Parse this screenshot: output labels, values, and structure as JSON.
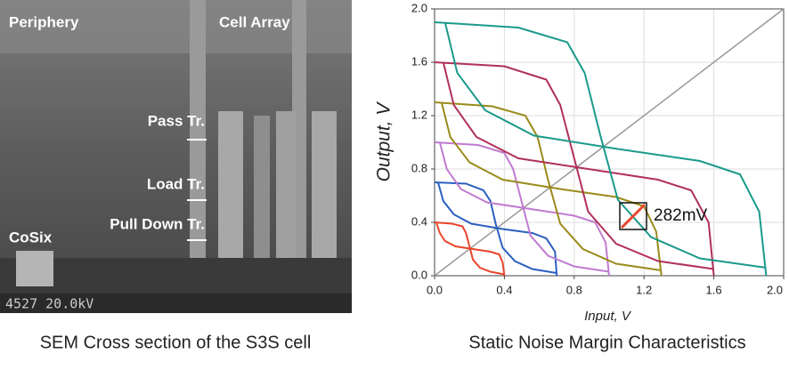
{
  "sem_panel": {
    "labels": [
      "Periphery",
      "Cell Array",
      "Pass Tr.",
      "Load Tr.",
      "Pull Down Tr.",
      "CoSix",
      "4527 20.0kV"
    ],
    "caption": "SEM Cross section of the S3S cell"
  },
  "chart_data": {
    "type": "line",
    "caption": "Static Noise Margin Characteristics",
    "xlabel": "Input, V",
    "ylabel": "Output, V",
    "annotation": "282mV",
    "xlim": [
      0,
      2
    ],
    "ylim": [
      0,
      2
    ],
    "xticks": [
      {
        "value": 0,
        "label": "0.0"
      },
      0.4,
      0.8,
      1.2,
      1.6,
      {
        "value": 2,
        "label": "2.0"
      }
    ],
    "yticks": [
      {
        "value": 0,
        "label": "0.0"
      },
      0.4,
      0.8,
      1.2,
      1.6,
      {
        "value": 2,
        "label": "2.0"
      }
    ],
    "grid": true,
    "series": [
      {
        "color": "#e8452a",
        "x": [
          0,
          0.1,
          0.16,
          0.18,
          0.2,
          0.22,
          0.26,
          0.32,
          0.4
        ],
        "values": [
          0.4,
          0.39,
          0.37,
          0.32,
          0.22,
          0.12,
          0.06,
          0.03,
          0.01
        ]
      },
      {
        "color": "#e8452a",
        "x": [
          0.4,
          0.39,
          0.37,
          0.32,
          0.22,
          0.12,
          0.06,
          0.03,
          0.01
        ],
        "values": [
          0,
          0.1,
          0.16,
          0.18,
          0.2,
          0.22,
          0.26,
          0.32,
          0.4
        ]
      },
      {
        "color": "#2a5fc0",
        "x": [
          0,
          0.18,
          0.28,
          0.32,
          0.35,
          0.39,
          0.46,
          0.56,
          0.7
        ],
        "values": [
          0.7,
          0.69,
          0.64,
          0.56,
          0.39,
          0.21,
          0.11,
          0.05,
          0.02
        ]
      },
      {
        "color": "#2a5fc0",
        "x": [
          0.7,
          0.69,
          0.64,
          0.56,
          0.39,
          0.21,
          0.11,
          0.05,
          0.02
        ],
        "values": [
          0,
          0.18,
          0.28,
          0.32,
          0.35,
          0.39,
          0.46,
          0.56,
          0.7
        ]
      },
      {
        "color": "#c07ad0",
        "x": [
          0,
          0.25,
          0.4,
          0.45,
          0.5,
          0.55,
          0.65,
          0.8,
          1.0
        ],
        "values": [
          1.0,
          0.98,
          0.92,
          0.8,
          0.55,
          0.3,
          0.15,
          0.07,
          0.03
        ]
      },
      {
        "color": "#c07ad0",
        "x": [
          1.0,
          0.98,
          0.92,
          0.8,
          0.55,
          0.3,
          0.15,
          0.07,
          0.03
        ],
        "values": [
          0,
          0.25,
          0.4,
          0.45,
          0.5,
          0.55,
          0.65,
          0.8,
          1.0
        ]
      },
      {
        "color": "#9a8a1a",
        "x": [
          0,
          0.33,
          0.52,
          0.59,
          0.65,
          0.72,
          0.85,
          1.04,
          1.3
        ],
        "values": [
          1.3,
          1.27,
          1.2,
          1.04,
          0.72,
          0.39,
          0.2,
          0.09,
          0.04
        ]
      },
      {
        "color": "#9a8a1a",
        "x": [
          1.3,
          1.27,
          1.2,
          1.04,
          0.72,
          0.39,
          0.2,
          0.09,
          0.04
        ],
        "values": [
          0,
          0.33,
          0.52,
          0.59,
          0.65,
          0.72,
          0.85,
          1.04,
          1.3
        ]
      },
      {
        "color": "#b0305a",
        "x": [
          0,
          0.4,
          0.64,
          0.72,
          0.8,
          0.88,
          1.04,
          1.28,
          1.6
        ],
        "values": [
          1.6,
          1.57,
          1.47,
          1.28,
          0.88,
          0.48,
          0.24,
          0.11,
          0.05
        ]
      },
      {
        "color": "#b0305a",
        "x": [
          1.6,
          1.57,
          1.47,
          1.28,
          0.88,
          0.48,
          0.24,
          0.11,
          0.05
        ],
        "values": [
          0,
          0.4,
          0.64,
          0.72,
          0.8,
          0.88,
          1.04,
          1.28,
          1.6
        ]
      },
      {
        "color": "#1a9a8a",
        "x": [
          0,
          0.48,
          0.76,
          0.86,
          0.95,
          1.05,
          1.24,
          1.52,
          1.9
        ],
        "values": [
          1.9,
          1.86,
          1.75,
          1.52,
          1.05,
          0.57,
          0.29,
          0.13,
          0.06
        ]
      },
      {
        "color": "#1a9a8a",
        "x": [
          1.9,
          1.86,
          1.75,
          1.52,
          1.05,
          0.57,
          0.29,
          0.13,
          0.06
        ],
        "values": [
          0,
          0.48,
          0.76,
          0.86,
          0.95,
          1.05,
          1.24,
          1.52,
          1.9
        ]
      }
    ]
  }
}
